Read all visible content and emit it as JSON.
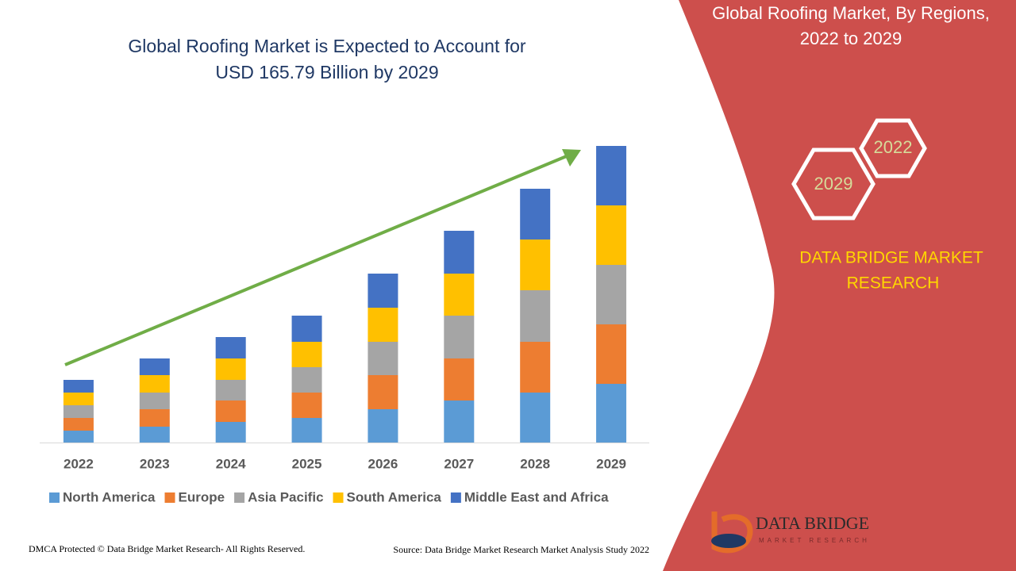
{
  "chart_data": {
    "type": "bar",
    "stacked": true,
    "title": [
      "Global Roofing Market is Expected to Account for",
      "USD 165.79 Billion by 2029"
    ],
    "categories": [
      "2022",
      "2023",
      "2024",
      "2025",
      "2026",
      "2027",
      "2028",
      "2029"
    ],
    "series": [
      {
        "name": "North America",
        "color": "#5b9bd5",
        "values": [
          15,
          20,
          26,
          31,
          42,
          53,
          63,
          74
        ]
      },
      {
        "name": "Europe",
        "color": "#ed7d31",
        "values": [
          16,
          22,
          27,
          32,
          43,
          53,
          64,
          75
        ]
      },
      {
        "name": "Asia Pacific",
        "color": "#a5a5a5",
        "values": [
          16,
          21,
          26,
          32,
          42,
          54,
          65,
          75
        ]
      },
      {
        "name": "South America",
        "color": "#ffc000",
        "values": [
          16,
          22,
          27,
          32,
          43,
          53,
          64,
          75
        ]
      },
      {
        "name": "Middle East and Africa",
        "color": "#4472c4",
        "values": [
          16,
          21,
          27,
          33,
          43,
          54,
          64,
          75
        ]
      }
    ]
  },
  "panel": {
    "title": [
      "Global Roofing Market, By Regions,",
      "2022 to 2029"
    ],
    "hexagons": [
      "2022",
      "2029"
    ],
    "brand": [
      "DATA BRIDGE MARKET",
      "RESEARCH"
    ]
  },
  "logo": {
    "text": "DATA BRIDGE",
    "subtext": "MARKET RESEARCH"
  },
  "footer": {
    "left": "DMCA Protected © Data Bridge Market Research- All Rights Reserved.",
    "right": "Source: Data Bridge Market Research Market Analysis Study 2022"
  }
}
